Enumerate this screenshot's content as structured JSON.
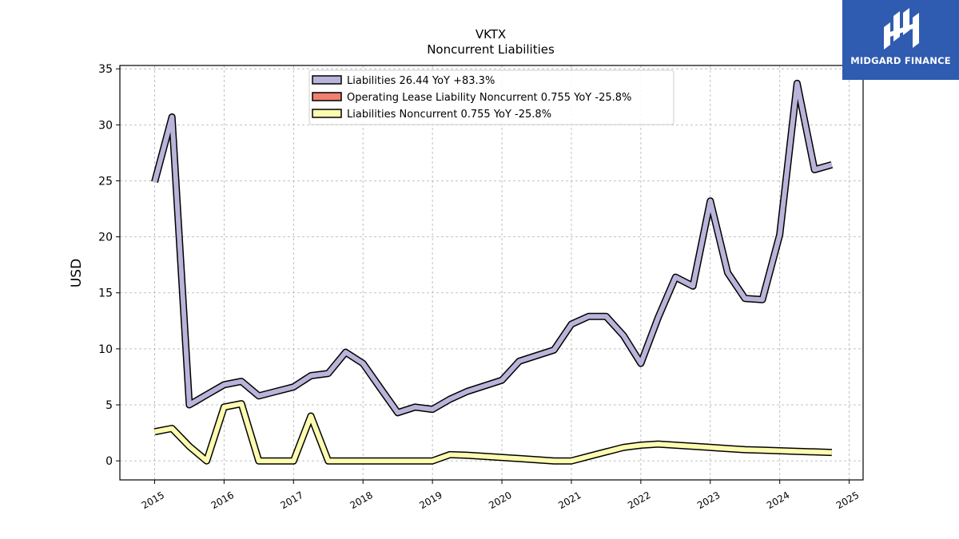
{
  "brand": {
    "logo_text": "MIDGARD FINANCE",
    "color": "#2f5bb0"
  },
  "chart_data": {
    "type": "line",
    "title": "VKTX",
    "subtitle": "Noncurrent  Liabilities",
    "xlabel": "",
    "ylabel": "USD",
    "xlim": [
      2014.5,
      2025.2
    ],
    "ylim": [
      -1.7,
      35.3
    ],
    "x_ticks": [
      "2015",
      "2016",
      "2017",
      "2018",
      "2019",
      "2020",
      "2021",
      "2022",
      "2023",
      "2024",
      "2025"
    ],
    "y_ticks": [
      "0",
      "5",
      "10",
      "15",
      "20",
      "25",
      "30",
      "35"
    ],
    "grid": true,
    "legend_position": "top-center",
    "series": [
      {
        "name": "Liabilities  26.44 YoY +83.3%",
        "color": "#b9b4d9",
        "x": [
          2015.0,
          2015.25,
          2015.5,
          2015.75,
          2016.0,
          2016.25,
          2016.5,
          2016.75,
          2017.0,
          2017.25,
          2017.5,
          2017.75,
          2018.0,
          2018.25,
          2018.5,
          2018.75,
          2019.0,
          2019.25,
          2019.5,
          2019.75,
          2020.0,
          2020.25,
          2020.5,
          2020.75,
          2021.0,
          2021.25,
          2021.5,
          2021.75,
          2022.0,
          2022.25,
          2022.5,
          2022.75,
          2023.0,
          2023.25,
          2023.5,
          2023.75,
          2024.0,
          2024.25,
          2024.5,
          2024.75
        ],
        "values": [
          24.9,
          30.7,
          5.0,
          5.9,
          6.8,
          7.1,
          5.8,
          6.2,
          6.6,
          7.6,
          7.8,
          9.7,
          8.7,
          6.5,
          4.3,
          4.8,
          4.6,
          5.5,
          6.2,
          6.7,
          7.2,
          8.9,
          9.4,
          9.9,
          12.2,
          12.9,
          12.9,
          11.2,
          8.7,
          12.8,
          16.4,
          15.6,
          23.2,
          16.8,
          14.5,
          14.4,
          20.2,
          33.7,
          26.0,
          26.44
        ]
      },
      {
        "name": "Operating Lease Liability Noncurrent  0.755 YoY -25.8%",
        "color": "#f08070",
        "x": [],
        "values": []
      },
      {
        "name": "Liabilities Noncurrent  0.755 YoY -25.8%",
        "color": "#fdfbb0",
        "x": [
          2015.0,
          2015.25,
          2015.5,
          2015.75,
          2016.0,
          2016.25,
          2016.5,
          2016.75,
          2017.0,
          2017.25,
          2017.5,
          2017.75,
          2018.0,
          2018.25,
          2018.5,
          2018.75,
          2019.0,
          2019.25,
          2019.5,
          2019.75,
          2020.0,
          2020.25,
          2020.5,
          2020.75,
          2021.0,
          2021.25,
          2021.5,
          2021.75,
          2022.0,
          2022.25,
          2022.5,
          2022.75,
          2023.0,
          2023.25,
          2023.5,
          2023.75,
          2024.0,
          2024.25,
          2024.5,
          2024.75
        ],
        "values": [
          2.6,
          2.9,
          1.3,
          0.0,
          4.8,
          5.1,
          0.0,
          0.0,
          0.0,
          4.0,
          0.0,
          0.0,
          0.0,
          0.0,
          0.0,
          0.0,
          0.0,
          0.55,
          0.5,
          0.4,
          0.3,
          0.2,
          0.1,
          0.0,
          0.0,
          0.4,
          0.8,
          1.2,
          1.4,
          1.5,
          1.4,
          1.3,
          1.2,
          1.1,
          1.0,
          0.95,
          0.9,
          0.85,
          0.8,
          0.755
        ]
      }
    ]
  }
}
